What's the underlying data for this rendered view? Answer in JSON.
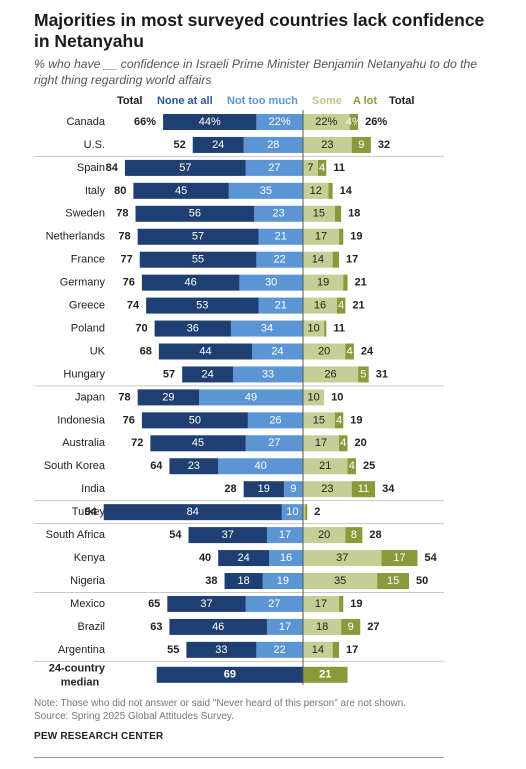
{
  "title": "Majorities in most surveyed countries lack confidence in Netanyahu",
  "subtitle": "% who have __ confidence in Israeli Prime Minister Benjamin Netanyahu to do the right thing regarding world affairs",
  "note": "Note: Those who did not answer or said \"Never heard of this person\" are not shown.",
  "source": "Source: Spring 2025 Global Attitudes Survey.",
  "brand": "PEW RESEARCH CENTER",
  "colors": {
    "none_at_all": "#1f3f72",
    "not_too_much": "#5b95d6",
    "some": "#c3cf94",
    "a_lot": "#8a9a3a",
    "header_none": "#2d5596",
    "header_not_too_much": "#5b95d6",
    "header_some": "#b9c98c",
    "header_a_lot": "#8a9a3a"
  },
  "chart_data": {
    "type": "bar",
    "headers": {
      "total_left": "Total",
      "none_at_all": "None at all",
      "not_too_much": "Not too much",
      "some": "Some",
      "a_lot": "A lot",
      "total_right": "Total"
    },
    "rows": [
      {
        "label": "Canada",
        "none": "44%",
        "not_too_much": "22%",
        "total_neg": "66%",
        "some": "22%",
        "a_lot": "4%",
        "total_pos": "26%",
        "v": [
          44,
          22,
          22,
          4
        ]
      },
      {
        "label": "U.S.",
        "none": "24",
        "not_too_much": "28",
        "total_neg": "52",
        "some": "23",
        "a_lot": "9",
        "total_pos": "32",
        "v": [
          24,
          28,
          23,
          9
        ]
      },
      {
        "label": "Spain",
        "none": "57",
        "not_too_much": "27",
        "total_neg": "84",
        "some": "7",
        "a_lot": "4",
        "total_pos": "11",
        "v": [
          57,
          27,
          7,
          4
        ]
      },
      {
        "label": "Italy",
        "none": "45",
        "not_too_much": "35",
        "total_neg": "80",
        "some": "12",
        "a_lot": "",
        "total_pos": "14",
        "v": [
          45,
          35,
          12,
          2
        ]
      },
      {
        "label": "Sweden",
        "none": "56",
        "not_too_much": "23",
        "total_neg": "78",
        "some": "15",
        "a_lot": "",
        "total_pos": "18",
        "v": [
          56,
          23,
          15,
          3
        ]
      },
      {
        "label": "Netherlands",
        "none": "57",
        "not_too_much": "21",
        "total_neg": "78",
        "some": "17",
        "a_lot": "",
        "total_pos": "19",
        "v": [
          57,
          21,
          17,
          2
        ]
      },
      {
        "label": "France",
        "none": "55",
        "not_too_much": "22",
        "total_neg": "77",
        "some": "14",
        "a_lot": "",
        "total_pos": "17",
        "v": [
          55,
          22,
          14,
          3
        ]
      },
      {
        "label": "Germany",
        "none": "46",
        "not_too_much": "30",
        "total_neg": "76",
        "some": "19",
        "a_lot": "",
        "total_pos": "21",
        "v": [
          46,
          30,
          19,
          2
        ]
      },
      {
        "label": "Greece",
        "none": "53",
        "not_too_much": "21",
        "total_neg": "74",
        "some": "16",
        "a_lot": "4",
        "total_pos": "21",
        "v": [
          53,
          21,
          16,
          4
        ]
      },
      {
        "label": "Poland",
        "none": "36",
        "not_too_much": "34",
        "total_neg": "70",
        "some": "10",
        "a_lot": "",
        "total_pos": "11",
        "v": [
          36,
          34,
          10,
          1
        ]
      },
      {
        "label": "UK",
        "none": "44",
        "not_too_much": "24",
        "total_neg": "68",
        "some": "20",
        "a_lot": "4",
        "total_pos": "24",
        "v": [
          44,
          24,
          20,
          4
        ]
      },
      {
        "label": "Hungary",
        "none": "24",
        "not_too_much": "33",
        "total_neg": "57",
        "some": "26",
        "a_lot": "5",
        "total_pos": "31",
        "v": [
          24,
          33,
          26,
          5
        ]
      },
      {
        "label": "Japan",
        "none": "29",
        "not_too_much": "49",
        "total_neg": "78",
        "some": "10",
        "a_lot": "",
        "total_pos": "10",
        "v": [
          29,
          49,
          10,
          0
        ]
      },
      {
        "label": "Indonesia",
        "none": "50",
        "not_too_much": "26",
        "total_neg": "76",
        "some": "15",
        "a_lot": "4",
        "total_pos": "19",
        "v": [
          50,
          26,
          15,
          4
        ]
      },
      {
        "label": "Australia",
        "none": "45",
        "not_too_much": "27",
        "total_neg": "72",
        "some": "17",
        "a_lot": "4",
        "total_pos": "20",
        "v": [
          45,
          27,
          17,
          4
        ]
      },
      {
        "label": "South Korea",
        "none": "23",
        "not_too_much": "40",
        "total_neg": "64",
        "some": "21",
        "a_lot": "4",
        "total_pos": "25",
        "v": [
          23,
          40,
          21,
          4
        ]
      },
      {
        "label": "India",
        "none": "19",
        "not_too_much": "9",
        "total_neg": "28",
        "some": "23",
        "a_lot": "11",
        "total_pos": "34",
        "v": [
          19,
          9,
          23,
          11
        ]
      },
      {
        "label": "Turkey",
        "none": "84",
        "not_too_much": "10",
        "total_neg": "94",
        "some": "",
        "a_lot": "",
        "total_pos": "2",
        "v": [
          84,
          10,
          1,
          1
        ]
      },
      {
        "label": "South Africa",
        "none": "37",
        "not_too_much": "17",
        "total_neg": "54",
        "some": "20",
        "a_lot": "8",
        "total_pos": "28",
        "v": [
          37,
          17,
          20,
          8
        ]
      },
      {
        "label": "Kenya",
        "none": "24",
        "not_too_much": "16",
        "total_neg": "40",
        "some": "37",
        "a_lot": "17",
        "total_pos": "54",
        "v": [
          24,
          16,
          37,
          17
        ]
      },
      {
        "label": "Nigeria",
        "none": "18",
        "not_too_much": "19",
        "total_neg": "38",
        "some": "35",
        "a_lot": "15",
        "total_pos": "50",
        "v": [
          18,
          19,
          35,
          15
        ]
      },
      {
        "label": "Mexico",
        "none": "37",
        "not_too_much": "27",
        "total_neg": "65",
        "some": "17",
        "a_lot": "",
        "total_pos": "19",
        "v": [
          37,
          27,
          17,
          2
        ]
      },
      {
        "label": "Brazil",
        "none": "46",
        "not_too_much": "17",
        "total_neg": "63",
        "some": "18",
        "a_lot": "9",
        "total_pos": "27",
        "v": [
          46,
          17,
          18,
          9
        ]
      },
      {
        "label": "Argentina",
        "none": "33",
        "not_too_much": "22",
        "total_neg": "55",
        "some": "14",
        "a_lot": "",
        "total_pos": "17",
        "v": [
          33,
          22,
          14,
          3
        ]
      }
    ],
    "median": {
      "label_line1": "24-country",
      "label_line2": "median",
      "negative_total": "69",
      "positive_total": "21",
      "v": [
        69,
        21
      ]
    },
    "group_breaks_after": [
      "U.S.",
      "Hungary",
      "India",
      "Turkey",
      "Nigeria",
      "Argentina"
    ]
  }
}
